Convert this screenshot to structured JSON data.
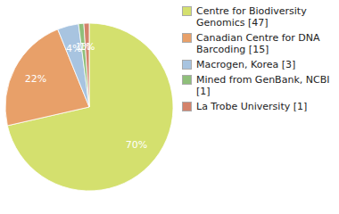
{
  "chart_data": {
    "type": "pie",
    "categories": [
      "Centre for Biodiversity\nGenomics [47]",
      "Canadian Centre for DNA\nBarcoding [15]",
      "Macrogen, Korea [3]",
      "Mined from GenBank, NCBI [1]",
      "La Trobe University [1]"
    ],
    "values": [
      70,
      22,
      4,
      1,
      1
    ],
    "value_labels": [
      "70%",
      "22%",
      "4%",
      "1%",
      "1%"
    ],
    "colors": [
      "#d4e06e",
      "#e8a069",
      "#a8c4e0",
      "#8fbf7a",
      "#d4826a"
    ],
    "data_labels": true,
    "legend": "upper right"
  }
}
